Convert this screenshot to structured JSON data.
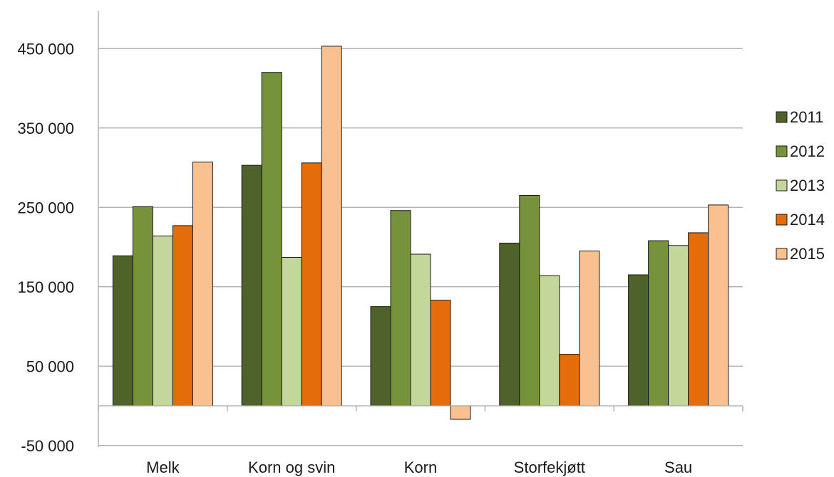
{
  "chart_data": {
    "type": "bar",
    "categories": [
      "Melk",
      "Korn og svin",
      "Korn",
      "Storfekjøtt",
      "Sau"
    ],
    "series": [
      {
        "name": "2011",
        "color": "#4e6229",
        "values": [
          189000,
          303000,
          125000,
          205000,
          165000
        ]
      },
      {
        "name": "2012",
        "color": "#76933c",
        "values": [
          251000,
          420000,
          246000,
          265000,
          208000
        ]
      },
      {
        "name": "2013",
        "color": "#c4d79b",
        "values": [
          214000,
          187000,
          191000,
          164000,
          202000
        ]
      },
      {
        "name": "2014",
        "color": "#e46c0a",
        "values": [
          227000,
          306000,
          133000,
          65000,
          218000
        ]
      },
      {
        "name": "2015",
        "color": "#fac090",
        "values": [
          307000,
          453000,
          -17000,
          195000,
          253000
        ]
      }
    ],
    "ylim": [
      -50000,
      500000
    ],
    "yticks": [
      -50000,
      50000,
      150000,
      250000,
      350000,
      450000
    ],
    "ytick_labels": [
      "-50 000",
      "50 000",
      "150 000",
      "250 000",
      "350 000",
      "450 000"
    ],
    "grid": true,
    "legend_position": "right"
  }
}
